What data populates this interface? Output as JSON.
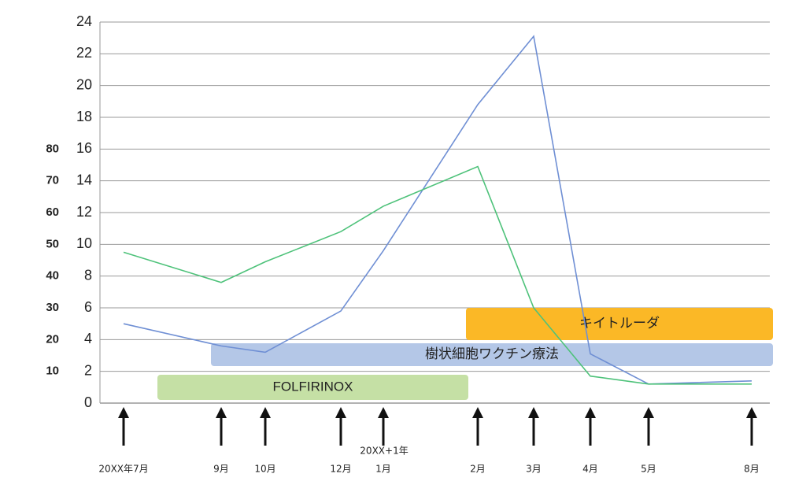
{
  "chart_data": {
    "type": "line",
    "categories": [
      "20XX年7月",
      "9月",
      "10月",
      "12月",
      "1月",
      "2月",
      "3月",
      "4月",
      "5月",
      "8月"
    ],
    "year_label": "20XX+1年",
    "series": [
      {
        "color": "#6f8fd4",
        "values": [
          5.0,
          3.6,
          3.2,
          5.8,
          9.6,
          18.8,
          23.1,
          3.1,
          1.2,
          1.4
        ]
      },
      {
        "color": "#4ec27a",
        "axis": "y2",
        "values": [
          47.5,
          38,
          44.5,
          54,
          62,
          74.5,
          30,
          8.5,
          6,
          6
        ]
      }
    ],
    "ylim": [
      0,
      24
    ],
    "yticks": [
      0,
      2,
      4,
      6,
      8,
      10,
      12,
      14,
      16,
      18,
      20,
      22,
      24
    ],
    "y2lim": [
      0,
      120
    ],
    "y2ticks": [
      10,
      20,
      30,
      40,
      50,
      60,
      70,
      80
    ],
    "grid": true,
    "annotations": [
      {
        "text": "FOLFIRINOX",
        "color": "#c5e0a5"
      },
      {
        "text": "樹状細胞ワクチン療法",
        "color": "#b4c7e7"
      },
      {
        "text": "キイトルーダ",
        "color": "#fbb826"
      }
    ]
  }
}
